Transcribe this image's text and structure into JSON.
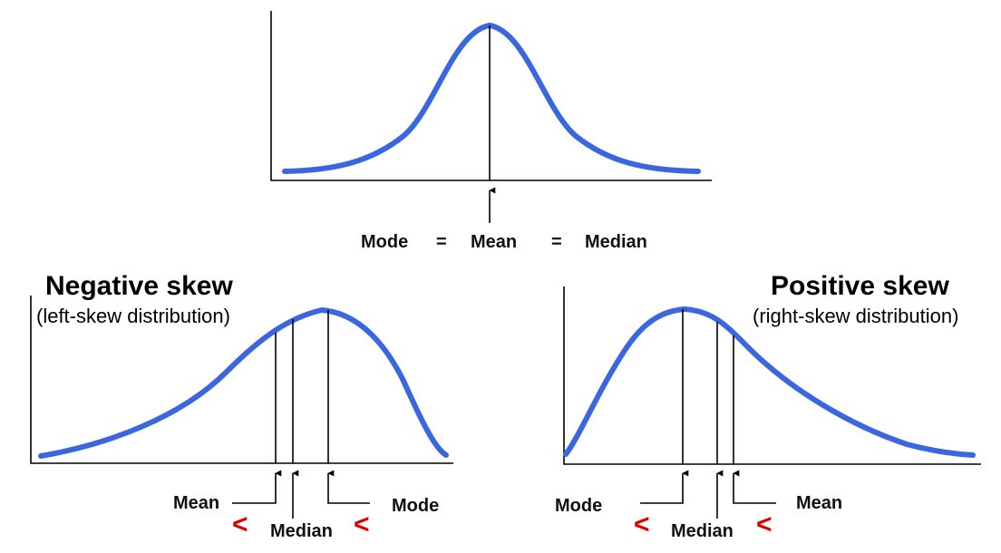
{
  "symmetric": {
    "labels": {
      "mode": "Mode",
      "mean": "Mean",
      "median": "Median"
    },
    "equals": [
      "=",
      "="
    ]
  },
  "negative": {
    "title": "Negative skew",
    "subtitle": "(left-skew distribution)",
    "labels": {
      "mean": "Mean",
      "median": "Median",
      "mode": "Mode"
    },
    "less_than": [
      "<",
      "<"
    ]
  },
  "positive": {
    "title": "Positive skew",
    "subtitle": "(right-skew distribution)",
    "labels": {
      "mode": "Mode",
      "median": "Median",
      "mean": "Mean"
    },
    "less_than": [
      "<",
      "<"
    ]
  },
  "colors": {
    "curve": "#3a66e0",
    "lessthan": "#e00000",
    "line": "#000000"
  },
  "icons": {
    "arrow": "arrow-up-icon"
  }
}
